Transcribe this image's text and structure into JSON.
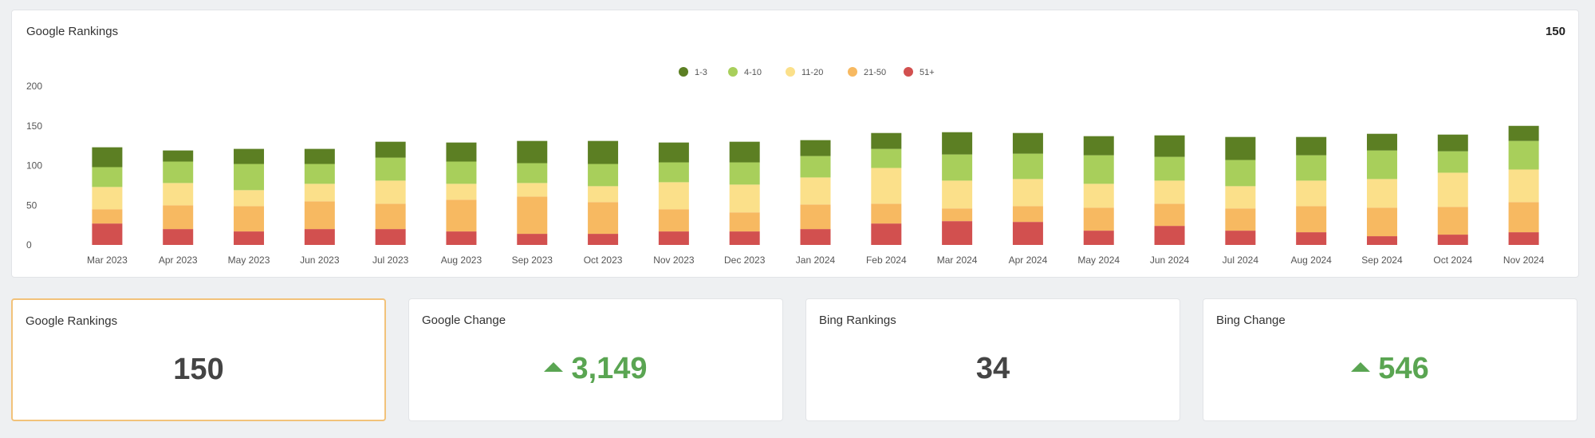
{
  "chart_card": {
    "title": "Google Rankings",
    "total": "150"
  },
  "chart_data": {
    "type": "bar",
    "stacked": true,
    "categories": [
      "Mar 2023",
      "Apr 2023",
      "May 2023",
      "Jun 2023",
      "Jul 2023",
      "Aug 2023",
      "Sep 2023",
      "Oct 2023",
      "Nov 2023",
      "Dec 2023",
      "Jan 2024",
      "Feb 2024",
      "Mar 2024",
      "Apr 2024",
      "May 2024",
      "Jun 2024",
      "Jul 2024",
      "Aug 2024",
      "Sep 2024",
      "Oct 2024",
      "Nov 2024"
    ],
    "series": [
      {
        "name": "51+",
        "color": "#d2504f",
        "values": [
          27,
          20,
          17,
          20,
          20,
          17,
          14,
          14,
          17,
          17,
          20,
          27,
          30,
          29,
          18,
          24,
          18,
          16,
          11,
          13,
          16
        ]
      },
      {
        "name": "21-50",
        "color": "#f7b961",
        "values": [
          18,
          30,
          32,
          35,
          32,
          40,
          47,
          40,
          28,
          24,
          31,
          25,
          16,
          20,
          29,
          28,
          28,
          33,
          36,
          35,
          38
        ]
      },
      {
        "name": "11-20",
        "color": "#fbe08a",
        "values": [
          28,
          28,
          20,
          22,
          29,
          20,
          17,
          20,
          34,
          35,
          34,
          45,
          35,
          34,
          30,
          29,
          28,
          32,
          36,
          43,
          41
        ]
      },
      {
        "name": "4-10",
        "color": "#a8cf5b",
        "values": [
          25,
          27,
          33,
          25,
          29,
          28,
          25,
          28,
          25,
          28,
          27,
          24,
          33,
          32,
          36,
          30,
          33,
          32,
          36,
          27,
          36
        ]
      },
      {
        "name": "1-3",
        "color": "#5c7f23",
        "values": [
          25,
          14,
          19,
          19,
          20,
          24,
          28,
          29,
          25,
          26,
          20,
          20,
          28,
          26,
          24,
          27,
          29,
          23,
          21,
          21,
          19
        ]
      }
    ],
    "legend_order": [
      "1-3",
      "4-10",
      "11-20",
      "21-50",
      "51+"
    ],
    "legend_position": "top-center",
    "yticks": [
      0,
      50,
      100,
      150,
      200
    ],
    "ylim": [
      0,
      200
    ],
    "grid": false,
    "title": "",
    "xlabel": "",
    "ylabel": ""
  },
  "stats": [
    {
      "label": "Google Rankings",
      "value": "150",
      "trend": ""
    },
    {
      "label": "Google Change",
      "value": "3,149",
      "trend": "up"
    },
    {
      "label": "Bing Rankings",
      "value": "34",
      "trend": ""
    },
    {
      "label": "Bing Change",
      "value": "546",
      "trend": "up"
    }
  ]
}
